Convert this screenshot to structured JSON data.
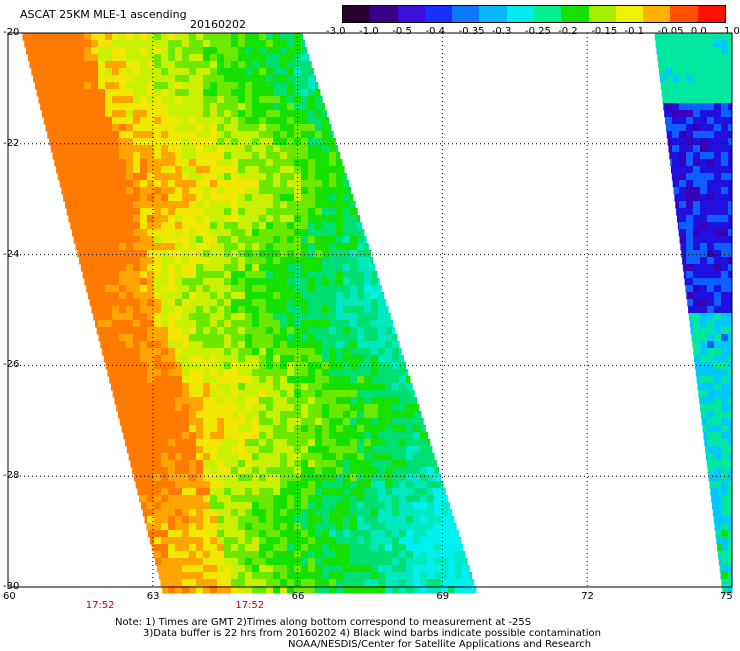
{
  "header": {
    "title": "ASCAT 25KM MLE-1 ascending",
    "date": "20160202"
  },
  "colorbar": {
    "labels": [
      "-3.0",
      "-1.0",
      "-0.5",
      "-0.4",
      "-0.35",
      "-0.3",
      "-0.25",
      "-0.2",
      "-0.15",
      "-0.1",
      "-0.05",
      "0.0",
      "1.0"
    ],
    "colors": [
      "#2b0030",
      "#3a0088",
      "#3a10d8",
      "#1830ff",
      "#0c78ff",
      "#08b8ff",
      "#00ecec",
      "#00ee90",
      "#16e000",
      "#a8f000",
      "#f0f000",
      "#ffb000",
      "#ff5000",
      "#ff1000"
    ]
  },
  "axes": {
    "lat_labels": [
      "-20",
      "-22",
      "-24",
      "-26",
      "-28",
      "-30"
    ],
    "lon_labels": [
      "60",
      "63",
      "66",
      "69",
      "72",
      "75"
    ],
    "lat_values": [
      -20,
      -22,
      -24,
      -26,
      -28,
      -30
    ],
    "lon_values": [
      60,
      63,
      66,
      69,
      72,
      75
    ],
    "lat_range": [
      -30,
      -20
    ],
    "lon_range": [
      60,
      75
    ],
    "grid": "dotted"
  },
  "times": [
    {
      "label": "17:52",
      "lon": 61.9
    },
    {
      "label": "17:52",
      "lon": 65.0
    }
  ],
  "notes": [
    "Note: 1) Times are GMT 2)Times along bottom correspond to measurement at -25S",
    "3)Data buffer is 22 hrs from 20160202 4) Black wind barbs indicate possible contamination",
    "NOAA/NESDIS/Center for Satellite Applications and Research"
  ],
  "swaths": [
    {
      "name": "west-swath",
      "top_lon": [
        60.3,
        66.1
      ],
      "bottom_lon": [
        63.2,
        69.7
      ],
      "palette": [
        "#ff7a00",
        "#ffa400",
        "#f0e800",
        "#c8f000",
        "#6ae800",
        "#16e000",
        "#00e070",
        "#00e8c0",
        "#00f0f0"
      ]
    },
    {
      "name": "east-swath",
      "top_lon": [
        73.4,
        75.0
      ],
      "bottom_lon": [
        74.8,
        75.0
      ],
      "palette": [
        "#16e000",
        "#00e8a0",
        "#00c8ff",
        "#0c60ff",
        "#2010e0",
        "#3a00b8"
      ]
    }
  ]
}
